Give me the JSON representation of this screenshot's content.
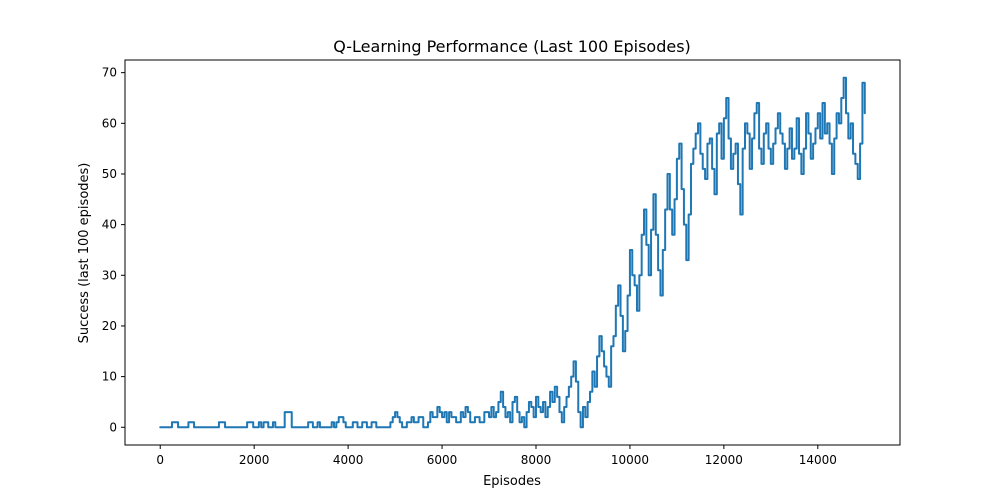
{
  "chart_data": {
    "type": "line",
    "title": "Q-Learning Performance (Last 100 Episodes)",
    "xlabel": "Episodes",
    "ylabel": "Success (last 100 episodes)",
    "xlim": [
      -750,
      15750
    ],
    "ylim": [
      -3.5,
      72.5
    ],
    "xticks": [
      0,
      2000,
      4000,
      6000,
      8000,
      10000,
      12000,
      14000
    ],
    "yticks": [
      0,
      10,
      20,
      30,
      40,
      50,
      60,
      70
    ],
    "grid": false,
    "legend": "none",
    "series": [
      {
        "color": "#1f77b4",
        "points": [
          [
            0,
            0
          ],
          [
            200,
            0
          ],
          [
            250,
            1
          ],
          [
            350,
            1
          ],
          [
            380,
            0
          ],
          [
            550,
            0
          ],
          [
            600,
            1
          ],
          [
            700,
            1
          ],
          [
            720,
            0
          ],
          [
            1200,
            0
          ],
          [
            1250,
            1
          ],
          [
            1350,
            1
          ],
          [
            1380,
            0
          ],
          [
            1800,
            0
          ],
          [
            1850,
            1
          ],
          [
            1950,
            1
          ],
          [
            1980,
            0
          ],
          [
            2050,
            0
          ],
          [
            2100,
            1
          ],
          [
            2150,
            0
          ],
          [
            2200,
            1
          ],
          [
            2300,
            0
          ],
          [
            2400,
            1
          ],
          [
            2450,
            0
          ],
          [
            2600,
            0
          ],
          [
            2650,
            3
          ],
          [
            2750,
            3
          ],
          [
            2800,
            0
          ],
          [
            3100,
            0
          ],
          [
            3150,
            1
          ],
          [
            3250,
            0
          ],
          [
            3300,
            0
          ],
          [
            3350,
            1
          ],
          [
            3400,
            0
          ],
          [
            3600,
            0
          ],
          [
            3650,
            1
          ],
          [
            3700,
            0
          ],
          [
            3750,
            1
          ],
          [
            3800,
            2
          ],
          [
            3900,
            1
          ],
          [
            3950,
            0
          ],
          [
            4100,
            1
          ],
          [
            4200,
            0
          ],
          [
            4300,
            1
          ],
          [
            4400,
            0
          ],
          [
            4500,
            1
          ],
          [
            4600,
            0
          ],
          [
            4800,
            0
          ],
          [
            4900,
            1
          ],
          [
            4950,
            2
          ],
          [
            5000,
            3
          ],
          [
            5050,
            2
          ],
          [
            5100,
            1
          ],
          [
            5150,
            0
          ],
          [
            5250,
            1
          ],
          [
            5350,
            2
          ],
          [
            5400,
            1
          ],
          [
            5500,
            2
          ],
          [
            5600,
            0
          ],
          [
            5700,
            1
          ],
          [
            5750,
            3
          ],
          [
            5800,
            2
          ],
          [
            5900,
            4
          ],
          [
            5950,
            3
          ],
          [
            6000,
            2
          ],
          [
            6050,
            3
          ],
          [
            6100,
            1
          ],
          [
            6150,
            3
          ],
          [
            6200,
            2
          ],
          [
            6300,
            1
          ],
          [
            6400,
            3
          ],
          [
            6450,
            2
          ],
          [
            6500,
            4
          ],
          [
            6550,
            3
          ],
          [
            6600,
            1
          ],
          [
            6700,
            2
          ],
          [
            6800,
            1
          ],
          [
            6900,
            3
          ],
          [
            7000,
            2
          ],
          [
            7050,
            4
          ],
          [
            7100,
            2
          ],
          [
            7150,
            3
          ],
          [
            7200,
            5
          ],
          [
            7250,
            7
          ],
          [
            7300,
            4
          ],
          [
            7350,
            2
          ],
          [
            7400,
            3
          ],
          [
            7450,
            1
          ],
          [
            7500,
            5
          ],
          [
            7550,
            6
          ],
          [
            7600,
            3
          ],
          [
            7650,
            1
          ],
          [
            7700,
            2
          ],
          [
            7750,
            0
          ],
          [
            7800,
            3
          ],
          [
            7850,
            5
          ],
          [
            7900,
            4
          ],
          [
            7950,
            2
          ],
          [
            8000,
            6
          ],
          [
            8050,
            4
          ],
          [
            8100,
            3
          ],
          [
            8150,
            5
          ],
          [
            8200,
            2
          ],
          [
            8250,
            4
          ],
          [
            8300,
            7
          ],
          [
            8350,
            5
          ],
          [
            8400,
            8
          ],
          [
            8450,
            6
          ],
          [
            8500,
            3
          ],
          [
            8550,
            1
          ],
          [
            8600,
            4
          ],
          [
            8650,
            6
          ],
          [
            8700,
            8
          ],
          [
            8750,
            10
          ],
          [
            8800,
            13
          ],
          [
            8850,
            9
          ],
          [
            8900,
            3
          ],
          [
            8950,
            0
          ],
          [
            9000,
            4
          ],
          [
            9050,
            2
          ],
          [
            9100,
            5
          ],
          [
            9150,
            7
          ],
          [
            9200,
            11
          ],
          [
            9250,
            8
          ],
          [
            9300,
            14
          ],
          [
            9350,
            18
          ],
          [
            9400,
            15
          ],
          [
            9450,
            12
          ],
          [
            9500,
            10
          ],
          [
            9550,
            8
          ],
          [
            9600,
            16
          ],
          [
            9650,
            18
          ],
          [
            9700,
            24
          ],
          [
            9750,
            28
          ],
          [
            9800,
            22
          ],
          [
            9850,
            15
          ],
          [
            9900,
            19
          ],
          [
            9950,
            26
          ],
          [
            10000,
            35
          ],
          [
            10050,
            30
          ],
          [
            10100,
            28
          ],
          [
            10150,
            23
          ],
          [
            10200,
            30
          ],
          [
            10250,
            38
          ],
          [
            10300,
            43
          ],
          [
            10350,
            36
          ],
          [
            10400,
            30
          ],
          [
            10450,
            39
          ],
          [
            10500,
            46
          ],
          [
            10550,
            38
          ],
          [
            10600,
            31
          ],
          [
            10650,
            26
          ],
          [
            10700,
            35
          ],
          [
            10750,
            43
          ],
          [
            10800,
            50
          ],
          [
            10850,
            43
          ],
          [
            10900,
            38
          ],
          [
            10950,
            45
          ],
          [
            11000,
            53
          ],
          [
            11050,
            56
          ],
          [
            11100,
            47
          ],
          [
            11150,
            40
          ],
          [
            11200,
            33
          ],
          [
            11250,
            42
          ],
          [
            11300,
            52
          ],
          [
            11350,
            55
          ],
          [
            11400,
            58
          ],
          [
            11450,
            60
          ],
          [
            11500,
            54
          ],
          [
            11550,
            51
          ],
          [
            11600,
            49
          ],
          [
            11650,
            56
          ],
          [
            11700,
            57
          ],
          [
            11750,
            51
          ],
          [
            11800,
            46
          ],
          [
            11850,
            58
          ],
          [
            11900,
            60
          ],
          [
            11950,
            53
          ],
          [
            12000,
            61
          ],
          [
            12050,
            65
          ],
          [
            12100,
            57
          ],
          [
            12150,
            51
          ],
          [
            12200,
            54
          ],
          [
            12250,
            56
          ],
          [
            12300,
            48
          ],
          [
            12350,
            42
          ],
          [
            12400,
            55
          ],
          [
            12450,
            60
          ],
          [
            12500,
            58
          ],
          [
            12550,
            51
          ],
          [
            12600,
            57
          ],
          [
            12650,
            62
          ],
          [
            12700,
            64
          ],
          [
            12750,
            55
          ],
          [
            12800,
            52
          ],
          [
            12850,
            58
          ],
          [
            12900,
            60
          ],
          [
            12950,
            55
          ],
          [
            13000,
            52
          ],
          [
            13050,
            56
          ],
          [
            13100,
            59
          ],
          [
            13150,
            62
          ],
          [
            13200,
            58
          ],
          [
            13250,
            56
          ],
          [
            13300,
            51
          ],
          [
            13350,
            55
          ],
          [
            13400,
            59
          ],
          [
            13450,
            53
          ],
          [
            13500,
            55
          ],
          [
            13550,
            61
          ],
          [
            13600,
            54
          ],
          [
            13650,
            50
          ],
          [
            13700,
            55
          ],
          [
            13750,
            62
          ],
          [
            13800,
            58
          ],
          [
            13850,
            53
          ],
          [
            13900,
            56
          ],
          [
            13950,
            59
          ],
          [
            14000,
            62
          ],
          [
            14050,
            57
          ],
          [
            14100,
            64
          ],
          [
            14150,
            58
          ],
          [
            14200,
            60
          ],
          [
            14250,
            56
          ],
          [
            14300,
            50
          ],
          [
            14350,
            57
          ],
          [
            14400,
            62
          ],
          [
            14450,
            60
          ],
          [
            14500,
            65
          ],
          [
            14550,
            69
          ],
          [
            14600,
            62
          ],
          [
            14650,
            57
          ],
          [
            14700,
            60
          ],
          [
            14750,
            54
          ],
          [
            14800,
            52
          ],
          [
            14850,
            49
          ],
          [
            14900,
            56
          ],
          [
            14950,
            68
          ],
          [
            15000,
            62
          ]
        ]
      }
    ]
  }
}
